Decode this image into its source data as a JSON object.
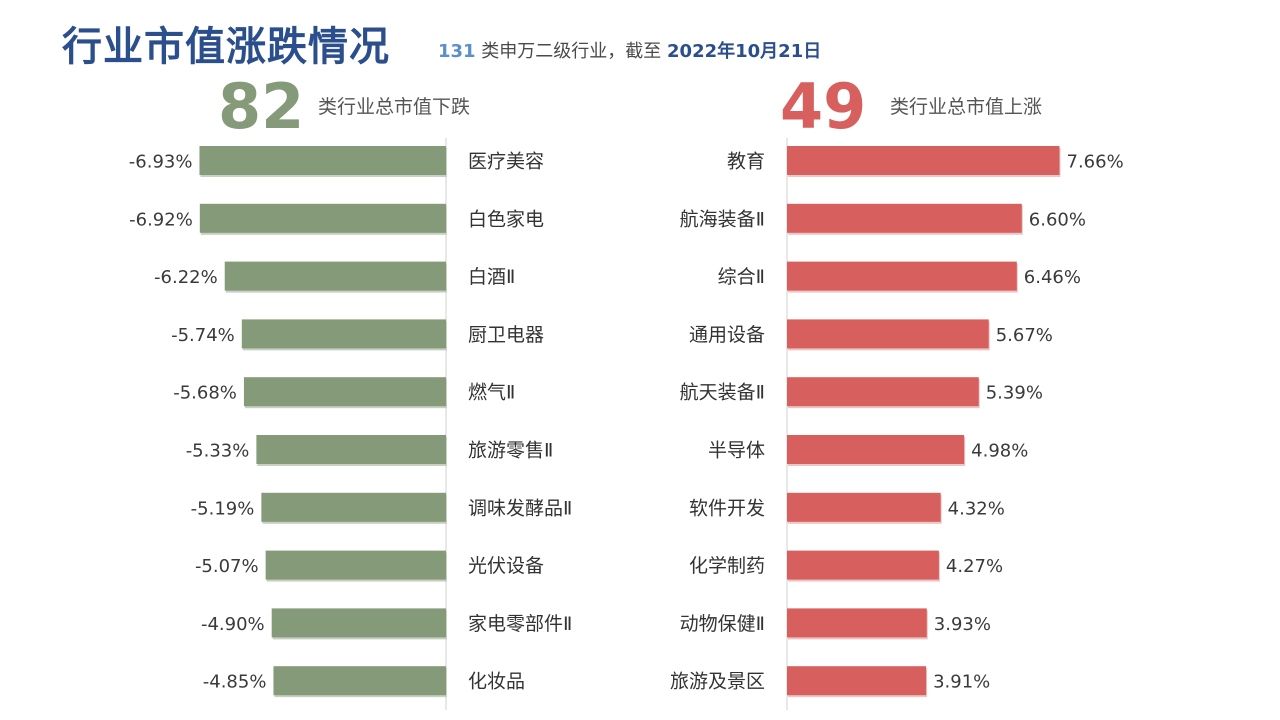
{
  "header": {
    "title": "行业市值涨跌情况",
    "subtitle_count": "131",
    "subtitle_text": " 类申万二级行业，截至 ",
    "subtitle_date": "2022年10月21日"
  },
  "summary": {
    "down_count": "82",
    "down_label": "类行业总市值下跌",
    "up_count": "49",
    "up_label": "类行业总市值上涨"
  },
  "colors": {
    "down_bar": "#859a78",
    "up_bar": "#d7605e",
    "title": "#2b4e8c",
    "axis_line": "#d0d0d0"
  },
  "chart_data": [
    {
      "type": "bar",
      "orientation": "horizontal",
      "side": "down",
      "categories": [
        "医疗美容",
        "白色家电",
        "白酒Ⅱ",
        "厨卫电器",
        "燃气Ⅱ",
        "旅游零售Ⅱ",
        "调味发酵品Ⅱ",
        "光伏设备",
        "家电零部件Ⅱ",
        "化妆品"
      ],
      "values": [
        -6.93,
        -6.92,
        -6.22,
        -5.74,
        -5.68,
        -5.33,
        -5.19,
        -5.07,
        -4.9,
        -4.85
      ],
      "labels": [
        "-6.93%",
        "-6.92%",
        "-6.22%",
        "-5.74%",
        "-5.68%",
        "-5.33%",
        "-5.19%",
        "-5.07%",
        "-4.90%",
        "-4.85%"
      ],
      "unit": "%"
    },
    {
      "type": "bar",
      "orientation": "horizontal",
      "side": "up",
      "categories": [
        "教育",
        "航海装备Ⅱ",
        "综合Ⅱ",
        "通用设备",
        "航天装备Ⅱ",
        "半导体",
        "软件开发",
        "化学制药",
        "动物保健Ⅱ",
        "旅游及景区"
      ],
      "values": [
        7.66,
        6.6,
        6.46,
        5.67,
        5.39,
        4.98,
        4.32,
        4.27,
        3.93,
        3.91
      ],
      "labels": [
        "7.66%",
        "6.60%",
        "6.46%",
        "5.67%",
        "5.39%",
        "4.98%",
        "4.32%",
        "4.27%",
        "3.93%",
        "3.91%"
      ],
      "unit": "%"
    }
  ]
}
